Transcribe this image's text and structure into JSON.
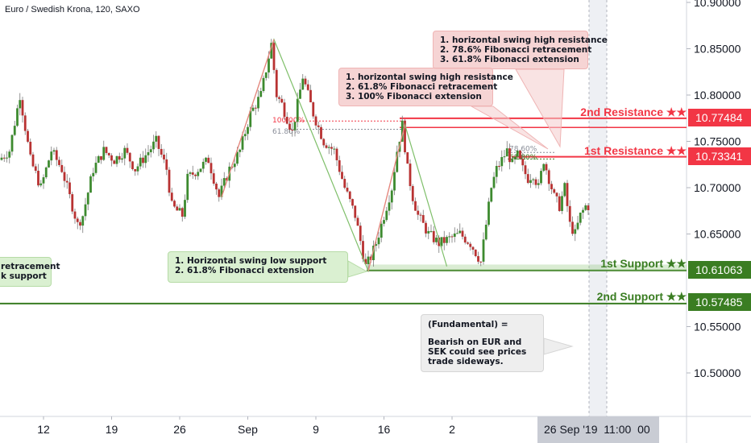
{
  "header": {
    "symbol_title": "Euro / Swedish Krona, 120, SAXO"
  },
  "chart_data": {
    "type": "candlestick",
    "y_axis": {
      "ticks": [
        "10.90000",
        "10.85000",
        "10.80000",
        "10.75000",
        "10.70000",
        "10.65000",
        "10.55000",
        "10.50000"
      ],
      "ylim": [
        10.455,
        10.905
      ]
    },
    "x_axis": {
      "ticks": [
        "12",
        "19",
        "26",
        "Sep",
        "9",
        "16",
        "2"
      ],
      "current_date_label": "26 Sep '19",
      "current_time_label": "11:00  00"
    },
    "levels": [
      {
        "name": "2nd Resistance ★★",
        "value": 10.77484,
        "price_label": "10.77484",
        "color": "#f23645"
      },
      {
        "name": "1st Resistance ★★",
        "value": 10.73341,
        "price_label": "10.73341",
        "color": "#f23645"
      },
      {
        "name": "1st Support ★★",
        "value": 10.61063,
        "price_label": "10.61063",
        "color": "#3a7d22"
      },
      {
        "name": "2nd Support ★★",
        "value": 10.57485,
        "price_label": "10.57485",
        "color": "#3a7d22"
      }
    ],
    "fib_labels": [
      "100.00%",
      "61.80%",
      "78.60%",
      "61.80%"
    ],
    "swing_path": [
      {
        "t": 42,
        "y": 10.69
      },
      {
        "t": 52,
        "y": 10.86
      },
      {
        "t": 70,
        "y": 10.61
      },
      {
        "t": 77,
        "y": 10.768
      },
      {
        "t": 85,
        "y": 10.615
      }
    ],
    "price_path": [
      [
        0,
        10.73
      ],
      [
        2,
        10.74
      ],
      [
        4,
        10.8
      ],
      [
        6,
        10.73
      ],
      [
        8,
        10.7
      ],
      [
        10,
        10.74
      ],
      [
        12,
        10.72
      ],
      [
        14,
        10.68
      ],
      [
        15,
        10.66
      ],
      [
        16,
        10.67
      ],
      [
        18,
        10.72
      ],
      [
        20,
        10.74
      ],
      [
        22,
        10.73
      ],
      [
        24,
        10.74
      ],
      [
        26,
        10.72
      ],
      [
        28,
        10.735
      ],
      [
        30,
        10.75
      ],
      [
        32,
        10.72
      ],
      [
        33,
        10.68
      ],
      [
        35,
        10.67
      ],
      [
        36,
        10.71
      ],
      [
        38,
        10.72
      ],
      [
        40,
        10.73
      ],
      [
        42,
        10.69
      ],
      [
        44,
        10.72
      ],
      [
        46,
        10.74
      ],
      [
        48,
        10.78
      ],
      [
        50,
        10.8
      ],
      [
        52,
        10.855
      ],
      [
        53,
        10.8
      ],
      [
        54,
        10.79
      ],
      [
        56,
        10.76
      ],
      [
        58,
        10.82
      ],
      [
        60,
        10.78
      ],
      [
        62,
        10.75
      ],
      [
        64,
        10.74
      ],
      [
        66,
        10.7
      ],
      [
        68,
        10.67
      ],
      [
        70,
        10.615
      ],
      [
        71,
        10.625
      ],
      [
        72,
        10.64
      ],
      [
        73,
        10.66
      ],
      [
        74,
        10.68
      ],
      [
        75,
        10.7
      ],
      [
        76,
        10.74
      ],
      [
        77,
        10.768
      ],
      [
        78,
        10.72
      ],
      [
        79,
        10.69
      ],
      [
        80,
        10.67
      ],
      [
        81,
        10.66
      ],
      [
        82,
        10.65
      ],
      [
        83,
        10.645
      ],
      [
        84,
        10.64
      ],
      [
        86,
        10.645
      ],
      [
        88,
        10.65
      ],
      [
        90,
        10.64
      ],
      [
        91,
        10.63
      ],
      [
        92,
        10.62
      ],
      [
        93,
        10.66
      ],
      [
        94,
        10.7
      ],
      [
        95,
        10.72
      ],
      [
        96,
        10.73
      ],
      [
        97,
        10.74
      ],
      [
        98,
        10.725
      ],
      [
        99,
        10.735
      ],
      [
        100,
        10.72
      ],
      [
        101,
        10.71
      ],
      [
        102,
        10.715
      ],
      [
        103,
        10.7
      ],
      [
        104,
        10.73
      ],
      [
        105,
        10.71
      ],
      [
        106,
        10.69
      ],
      [
        107,
        10.68
      ],
      [
        108,
        10.7
      ],
      [
        109,
        10.66
      ],
      [
        110,
        10.65
      ],
      [
        111,
        10.67
      ],
      [
        112,
        10.68
      ]
    ],
    "x_tick_positions": [
      {
        "label": "12",
        "t": 8
      },
      {
        "label": "19",
        "t": 21
      },
      {
        "label": "26",
        "t": 34
      },
      {
        "label": "Sep",
        "t": 47
      },
      {
        "label": "9",
        "t": 60
      },
      {
        "label": "16",
        "t": 73
      },
      {
        "label": "2",
        "t": 86
      }
    ]
  },
  "annotations": {
    "note_top_right": [
      "1. horizontal swing high resistance",
      "2. 78.6% Fibonacci retracement",
      "3. 61.8% Fibonacci extension"
    ],
    "note_mid": [
      "1. horizontal swing high resistance",
      "2. 61.8% Fibonacci retracement",
      "3. 100% Fibonacci extension"
    ],
    "note_support": [
      "1. Horizontal swing low support",
      "2. 61.8% Fibonacci extension"
    ],
    "note_left": [
      "retracement",
      "k support"
    ],
    "note_fundamental": [
      "(Fundamental) =",
      "Bearish on EUR and SEK could see prices trade sideways."
    ]
  },
  "colors": {
    "bull": "#26a69a",
    "bear": "#ef5350",
    "candle_up": "#3d8a2f",
    "candle_down": "#b83232",
    "resistance": "#f23645",
    "support": "#3a7d22",
    "axis_text": "#131722"
  }
}
